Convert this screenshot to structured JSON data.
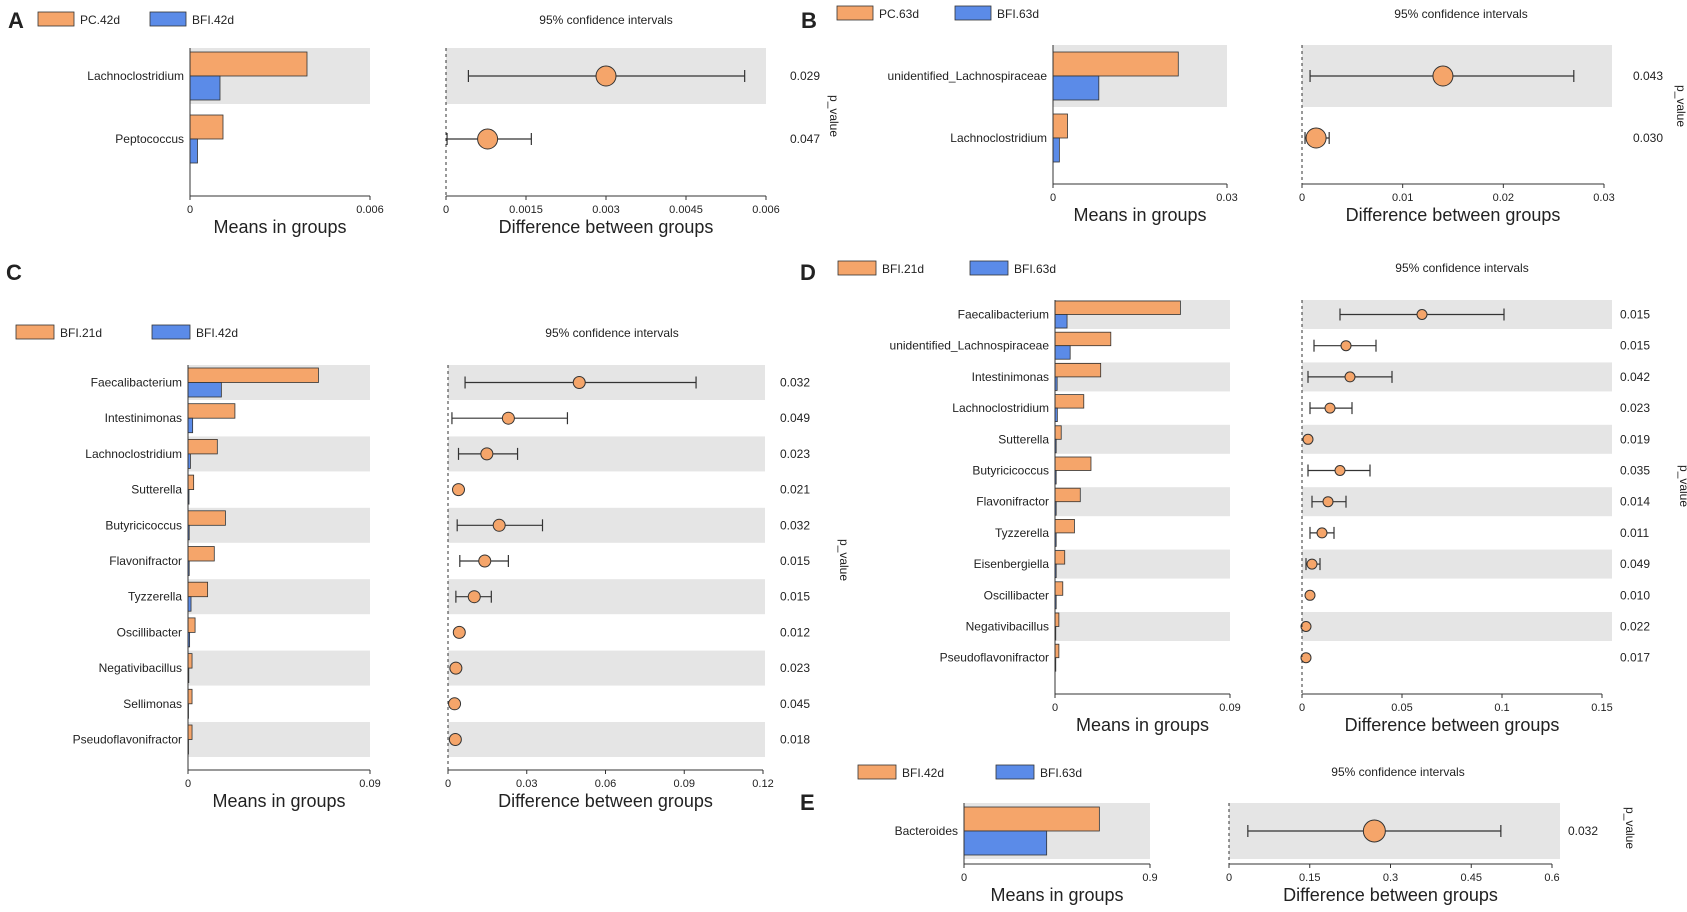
{
  "colors": {
    "group_a": "#F5A56A",
    "group_b": "#5B8BE8",
    "stripe": "#E5E5E5",
    "ci_line": "#333333",
    "point_fill": "#F5A56A"
  },
  "chart_data": [
    {
      "panel": "A",
      "type": "bar",
      "legend": [
        "PC.42d",
        "BFI.42d"
      ],
      "categories": [
        "Lachnoclostridium",
        "Peptococcus"
      ],
      "series": [
        {
          "name": "PC.42d",
          "values": [
            0.0039,
            0.0011
          ]
        },
        {
          "name": "BFI.42d",
          "values": [
            0.001,
            0.00025
          ]
        }
      ],
      "means_axis": {
        "title": "Means in groups",
        "range": [
          0,
          0.006
        ],
        "ticks": [
          "0",
          "0.006"
        ]
      },
      "diff": {
        "mean": [
          0.003,
          0.00078
        ],
        "lower": [
          0.00042,
          2e-05
        ],
        "upper": [
          0.0056,
          0.0016
        ]
      },
      "diff_axis": {
        "title": "Difference between groups",
        "range": [
          0,
          0.006
        ],
        "ticks": [
          "0",
          "0.0015",
          "0.003",
          "0.0045",
          "0.006"
        ]
      },
      "ci_title": "95% confidence intervals",
      "p_values": [
        "0.029",
        "0.047"
      ],
      "p_label": "p_value"
    },
    {
      "panel": "B",
      "type": "bar",
      "legend": [
        "PC.63d",
        "BFI.63d"
      ],
      "categories": [
        "unidentified_Lachnospiraceae",
        "Lachnoclostridium"
      ],
      "series": [
        {
          "name": "PC.63d",
          "values": [
            0.0216,
            0.0025
          ]
        },
        {
          "name": "BFI.63d",
          "values": [
            0.0079,
            0.0011
          ]
        }
      ],
      "means_axis": {
        "title": "Means in groups",
        "range": [
          0,
          0.03
        ],
        "ticks": [
          "0",
          "0.03"
        ]
      },
      "diff": {
        "mean": [
          0.014,
          0.0014
        ],
        "lower": [
          0.0008,
          0.0003
        ],
        "upper": [
          0.027,
          0.0027
        ]
      },
      "diff_axis": {
        "title": "Difference between groups",
        "range": [
          0,
          0.03
        ],
        "ticks": [
          "0",
          "0.01",
          "0.02",
          "0.03"
        ]
      },
      "ci_title": "95% confidence intervals",
      "p_values": [
        "0.043",
        "0.030"
      ],
      "p_label": "p_value"
    },
    {
      "panel": "C",
      "type": "bar",
      "legend": [
        "BFI.21d",
        "BFI.42d"
      ],
      "categories": [
        "Faecalibacterium",
        "Intestinimonas",
        "Lachnoclostridium",
        "Sutterella",
        "Butyricicoccus",
        "Flavonifractor",
        "Tyzzerella",
        "Oscillibacter",
        "Negativibacillus",
        "Sellimonas",
        "Pseudoflavonifractor"
      ],
      "series": [
        {
          "name": "BFI.21d",
          "values": [
            0.0645,
            0.0232,
            0.0145,
            0.0028,
            0.0185,
            0.013,
            0.0097,
            0.0035,
            0.002,
            0.002,
            0.002
          ]
        },
        {
          "name": "BFI.42d",
          "values": [
            0.0165,
            0.0023,
            0.0012,
            0.0005,
            0.0006,
            0.0006,
            0.0015,
            0.0008,
            0.0004,
            0.0002,
            0.0002
          ]
        }
      ],
      "means_axis": {
        "title": "Means in groups",
        "range": [
          0,
          0.09
        ],
        "ticks": [
          "0",
          "0.09"
        ]
      },
      "diff": {
        "mean": [
          0.05,
          0.023,
          0.0148,
          0.004,
          0.0195,
          0.014,
          0.01,
          0.0043,
          0.003,
          0.0025,
          0.0028
        ],
        "lower": [
          0.0065,
          0.0015,
          0.004,
          0.004,
          0.0035,
          0.0045,
          0.003,
          0.0043,
          0.003,
          0.0025,
          0.0028
        ],
        "upper": [
          0.0945,
          0.0455,
          0.0265,
          0.004,
          0.036,
          0.023,
          0.0165,
          0.0043,
          0.003,
          0.0025,
          0.0028
        ]
      },
      "diff_axis": {
        "title": "Difference between groups",
        "range": [
          0,
          0.12
        ],
        "ticks": [
          "0",
          "0.03",
          "0.06",
          "0.09",
          "0.12"
        ]
      },
      "ci_title": "95% confidence intervals",
      "p_values": [
        "0.032",
        "0.049",
        "0.023",
        "0.021",
        "0.032",
        "0.015",
        "0.015",
        "0.012",
        "0.023",
        "0.045",
        "0.018"
      ],
      "p_label": "p_value"
    },
    {
      "panel": "D",
      "type": "bar",
      "legend": [
        "BFI.21d",
        "BFI.63d"
      ],
      "categories": [
        "Faecalibacterium",
        "unidentified_Lachnospiraceae",
        "Intestinimonas",
        "Lachnoclostridium",
        "Sutterella",
        "Butyricicoccus",
        "Flavonifractor",
        "Tyzzerella",
        "Eisenbergiella",
        "Oscillibacter",
        "Negativibacillus",
        "Pseudoflavonifractor"
      ],
      "series": [
        {
          "name": "BFI.21d",
          "values": [
            0.0645,
            0.0287,
            0.0235,
            0.0148,
            0.0032,
            0.0185,
            0.013,
            0.01,
            0.005,
            0.004,
            0.002,
            0.002
          ]
        },
        {
          "name": "BFI.63d",
          "values": [
            0.0062,
            0.0078,
            0.0011,
            0.0012,
            0.0006,
            0.0006,
            0.0006,
            0.0006,
            0.0006,
            0.0006,
            0.0004,
            0.0004
          ]
        }
      ],
      "means_axis": {
        "title": "Means in groups",
        "range": [
          0,
          0.09
        ],
        "ticks": [
          "0",
          "0.09"
        ]
      },
      "diff": {
        "mean": [
          0.06,
          0.022,
          0.024,
          0.014,
          0.003,
          0.019,
          0.013,
          0.01,
          0.005,
          0.004,
          0.002,
          0.002
        ],
        "lower": [
          0.019,
          0.006,
          0.003,
          0.004,
          0.003,
          0.003,
          0.005,
          0.004,
          0.002,
          0.004,
          0.002,
          0.002
        ],
        "upper": [
          0.101,
          0.037,
          0.045,
          0.025,
          0.003,
          0.034,
          0.022,
          0.016,
          0.009,
          0.004,
          0.002,
          0.002
        ]
      },
      "diff_axis": {
        "title": "Difference between groups",
        "range": [
          0,
          0.15
        ],
        "ticks": [
          "0",
          "0.05",
          "0.1",
          "0.15"
        ]
      },
      "ci_title": "95% confidence intervals",
      "p_values": [
        "0.015",
        "0.015",
        "0.042",
        "0.023",
        "0.019",
        "0.035",
        "0.014",
        "0.011",
        "0.049",
        "0.010",
        "0.022",
        "0.017"
      ],
      "p_label": "p_value"
    },
    {
      "panel": "E",
      "type": "bar",
      "legend": [
        "BFI.42d",
        "BFI.63d"
      ],
      "categories": [
        "Bacteroides"
      ],
      "series": [
        {
          "name": "BFI.42d",
          "values": [
            0.655
          ]
        },
        {
          "name": "BFI.63d",
          "values": [
            0.4
          ]
        }
      ],
      "means_axis": {
        "title": "Means in groups",
        "range": [
          0,
          0.9
        ],
        "ticks": [
          "0",
          "0.9"
        ]
      },
      "diff": {
        "mean": [
          0.27
        ],
        "lower": [
          0.035
        ],
        "upper": [
          0.505
        ]
      },
      "diff_axis": {
        "title": "Difference between groups",
        "range": [
          0,
          0.6
        ],
        "ticks": [
          "0",
          "0.15",
          "0.3",
          "0.45",
          "0.6"
        ]
      },
      "ci_title": "95% confidence intervals",
      "p_values": [
        "0.032"
      ],
      "p_label": "p_value"
    }
  ]
}
